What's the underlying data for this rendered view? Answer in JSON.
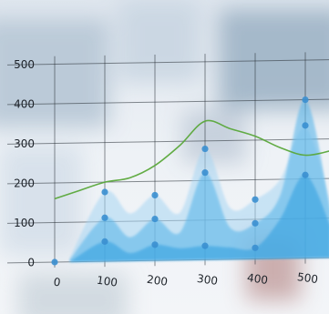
{
  "chart_data": {
    "type": "area",
    "x_ticks": [
      "0",
      "100",
      "200",
      "300",
      "400",
      "500"
    ],
    "y_ticks": [
      "0",
      "100",
      "200",
      "300",
      "400",
      "500"
    ],
    "xlim": [
      0,
      550
    ],
    "ylim": [
      0,
      500
    ],
    "grid": true,
    "series": [
      {
        "role": "green-line",
        "color": "#5aa83a",
        "x": [
          0,
          50,
          100,
          150,
          200,
          250,
          300,
          350,
          400,
          450,
          500,
          550
        ],
        "y": [
          160,
          180,
          200,
          210,
          240,
          290,
          350,
          330,
          310,
          280,
          260,
          270
        ]
      },
      {
        "role": "area-light",
        "color": "#a8d6f3",
        "x": [
          30,
          100,
          150,
          200,
          250,
          300,
          350,
          400,
          450,
          500,
          550
        ],
        "y": [
          10,
          175,
          120,
          165,
          120,
          280,
          130,
          150,
          200,
          330,
          140
        ]
      },
      {
        "role": "area-mid",
        "color": "#5db7ea",
        "x": [
          30,
          100,
          150,
          200,
          250,
          300,
          350,
          400,
          450,
          500,
          550
        ],
        "y": [
          5,
          110,
          60,
          105,
          70,
          220,
          80,
          90,
          160,
          400,
          120
        ]
      },
      {
        "role": "area-dark",
        "color": "#2d9fe0",
        "x": [
          30,
          100,
          150,
          200,
          250,
          300,
          350,
          400,
          450,
          500,
          550
        ],
        "y": [
          0,
          50,
          20,
          40,
          30,
          35,
          30,
          28,
          100,
          210,
          80
        ]
      }
    ],
    "markers": {
      "color": "#3a8fd0",
      "points": [
        {
          "x": 0,
          "y": 0
        },
        {
          "x": 100,
          "y": 175
        },
        {
          "x": 100,
          "y": 110
        },
        {
          "x": 100,
          "y": 50
        },
        {
          "x": 200,
          "y": 165
        },
        {
          "x": 200,
          "y": 105
        },
        {
          "x": 200,
          "y": 40
        },
        {
          "x": 300,
          "y": 280
        },
        {
          "x": 300,
          "y": 220
        },
        {
          "x": 300,
          "y": 35
        },
        {
          "x": 400,
          "y": 150
        },
        {
          "x": 400,
          "y": 90
        },
        {
          "x": 400,
          "y": 28
        },
        {
          "x": 500,
          "y": 400
        },
        {
          "x": 500,
          "y": 335
        },
        {
          "x": 500,
          "y": 210
        }
      ]
    }
  }
}
